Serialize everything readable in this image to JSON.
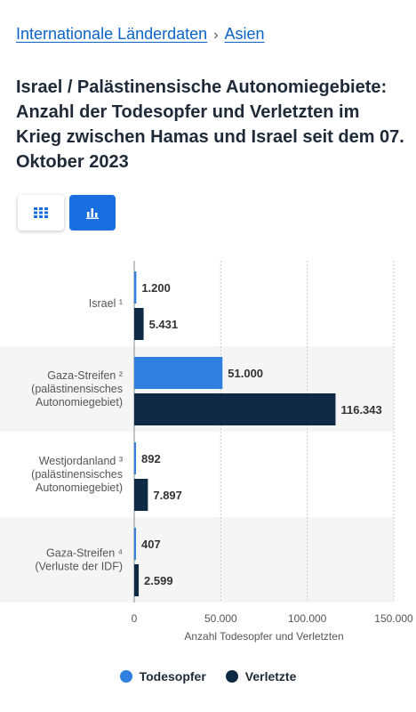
{
  "breadcrumb": {
    "root": "Internationale Länderdaten",
    "separator": "›",
    "current": "Asien"
  },
  "title": "Israel / Palästinensische Autonomiegebiete: Anzahl der Todesopfer und Verletzten im Krieg zwischen Hamas und Israel seit dem 07. Oktober 2023",
  "view_toggle": {
    "active": "chart",
    "icons": [
      "table-grid-icon",
      "bar-chart-icon"
    ]
  },
  "colors": {
    "todesopfer": "#2e7fe0",
    "verletzte": "#0f2a44",
    "band": "#f5f5f5",
    "grid": "#c8c8c8"
  },
  "chart_data": {
    "type": "bar",
    "orientation": "horizontal",
    "categories": [
      [
        "Israel ¹"
      ],
      [
        "Gaza-Streifen ²",
        "(palästinensisches",
        "Autonomiegebiet)"
      ],
      [
        "Westjordanland ³",
        "(palästinensisches",
        "Autonomiegebiet)"
      ],
      [
        "Gaza-Streifen ⁴",
        "(Verluste der IDF)"
      ]
    ],
    "series": [
      {
        "name": "Todesopfer",
        "values": [
          1200,
          51000,
          892,
          407
        ],
        "labels": [
          "1.200",
          "51.000",
          "892",
          "407"
        ]
      },
      {
        "name": "Verletzte",
        "values": [
          5431,
          116343,
          7897,
          2599
        ],
        "labels": [
          "5.431",
          "116.343",
          "7.897",
          "2.599"
        ]
      }
    ],
    "xlim": [
      0,
      150000
    ],
    "xticks": [
      0,
      50000,
      100000,
      150000
    ],
    "xtick_labels": [
      "0",
      "50.000",
      "100.000",
      "150.000"
    ],
    "xlabel": "Anzahl Todesopfer und Verletzten",
    "grid": true,
    "legend": "bottom"
  }
}
